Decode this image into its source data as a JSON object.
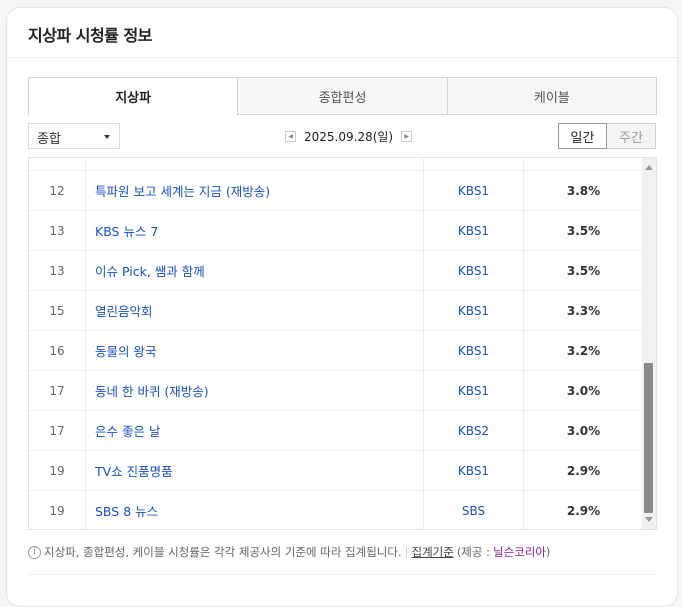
{
  "title": "지상파 시청률 정보",
  "tabs": [
    "지상파",
    "종합편성",
    "케이블"
  ],
  "filter": {
    "selected": "종합"
  },
  "date": "2025.09.28(일)",
  "period": {
    "daily": "일간",
    "weekly": "주간"
  },
  "rows": [
    {
      "rank": "12",
      "program": "특파원 보고 세계는 지금 (재방송)",
      "channel": "KBS1",
      "rating": "3.8%"
    },
    {
      "rank": "13",
      "program": "KBS 뉴스 7",
      "channel": "KBS1",
      "rating": "3.5%"
    },
    {
      "rank": "13",
      "program": "이슈 Pick, 쌤과 함께",
      "channel": "KBS1",
      "rating": "3.5%"
    },
    {
      "rank": "15",
      "program": "열린음악회",
      "channel": "KBS1",
      "rating": "3.3%"
    },
    {
      "rank": "16",
      "program": "동물의 왕국",
      "channel": "KBS1",
      "rating": "3.2%"
    },
    {
      "rank": "17",
      "program": "동네 한 바퀴 (재방송)",
      "channel": "KBS1",
      "rating": "3.0%"
    },
    {
      "rank": "17",
      "program": "은수 좋은 날",
      "channel": "KBS2",
      "rating": "3.0%"
    },
    {
      "rank": "19",
      "program": "TV쇼 진품명품",
      "channel": "KBS1",
      "rating": "2.9%"
    },
    {
      "rank": "19",
      "program": "SBS 8 뉴스",
      "channel": "SBS",
      "rating": "2.9%"
    }
  ],
  "footer": {
    "note": "지상파, 종합편성, 케이블 시청률은 각각 제공사의 기준에 따라 집계됩니다.",
    "sep": "|",
    "link": "집계기준",
    "provider_prefix": "(제공 :",
    "provider": "닐슨코리아",
    "provider_suffix": ")"
  }
}
